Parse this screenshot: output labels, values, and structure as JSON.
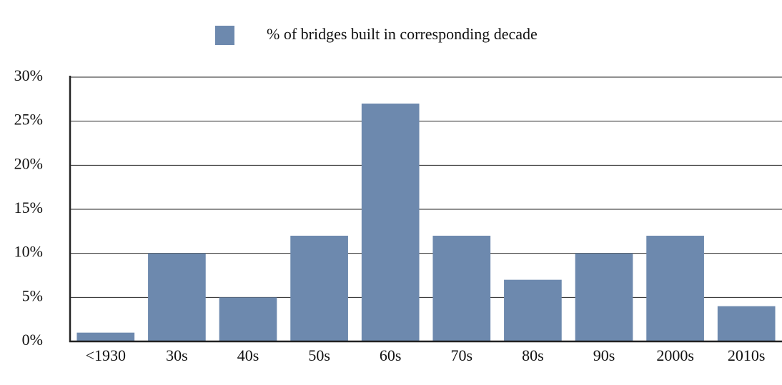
{
  "chart_data": {
    "type": "bar",
    "categories": [
      "<1930",
      "30s",
      "40s",
      "50s",
      "60s",
      "70s",
      "80s",
      "90s",
      "2000s",
      "2010s"
    ],
    "series": [
      {
        "name": "% of bridges built in corresponding decade",
        "color": "#6d89ae",
        "values": [
          1,
          10,
          5,
          12,
          27,
          12,
          7,
          10,
          12,
          4
        ]
      }
    ],
    "ylim": [
      0,
      30
    ],
    "yticks": [
      {
        "value": 0,
        "label": "0%"
      },
      {
        "value": 5,
        "label": "5%"
      },
      {
        "value": 10,
        "label": "10%"
      },
      {
        "value": 15,
        "label": "15%"
      },
      {
        "value": 20,
        "label": "20%"
      },
      {
        "value": 25,
        "label": "25%"
      },
      {
        "value": 30,
        "label": "30%"
      }
    ],
    "grid": true,
    "legend": "top"
  }
}
